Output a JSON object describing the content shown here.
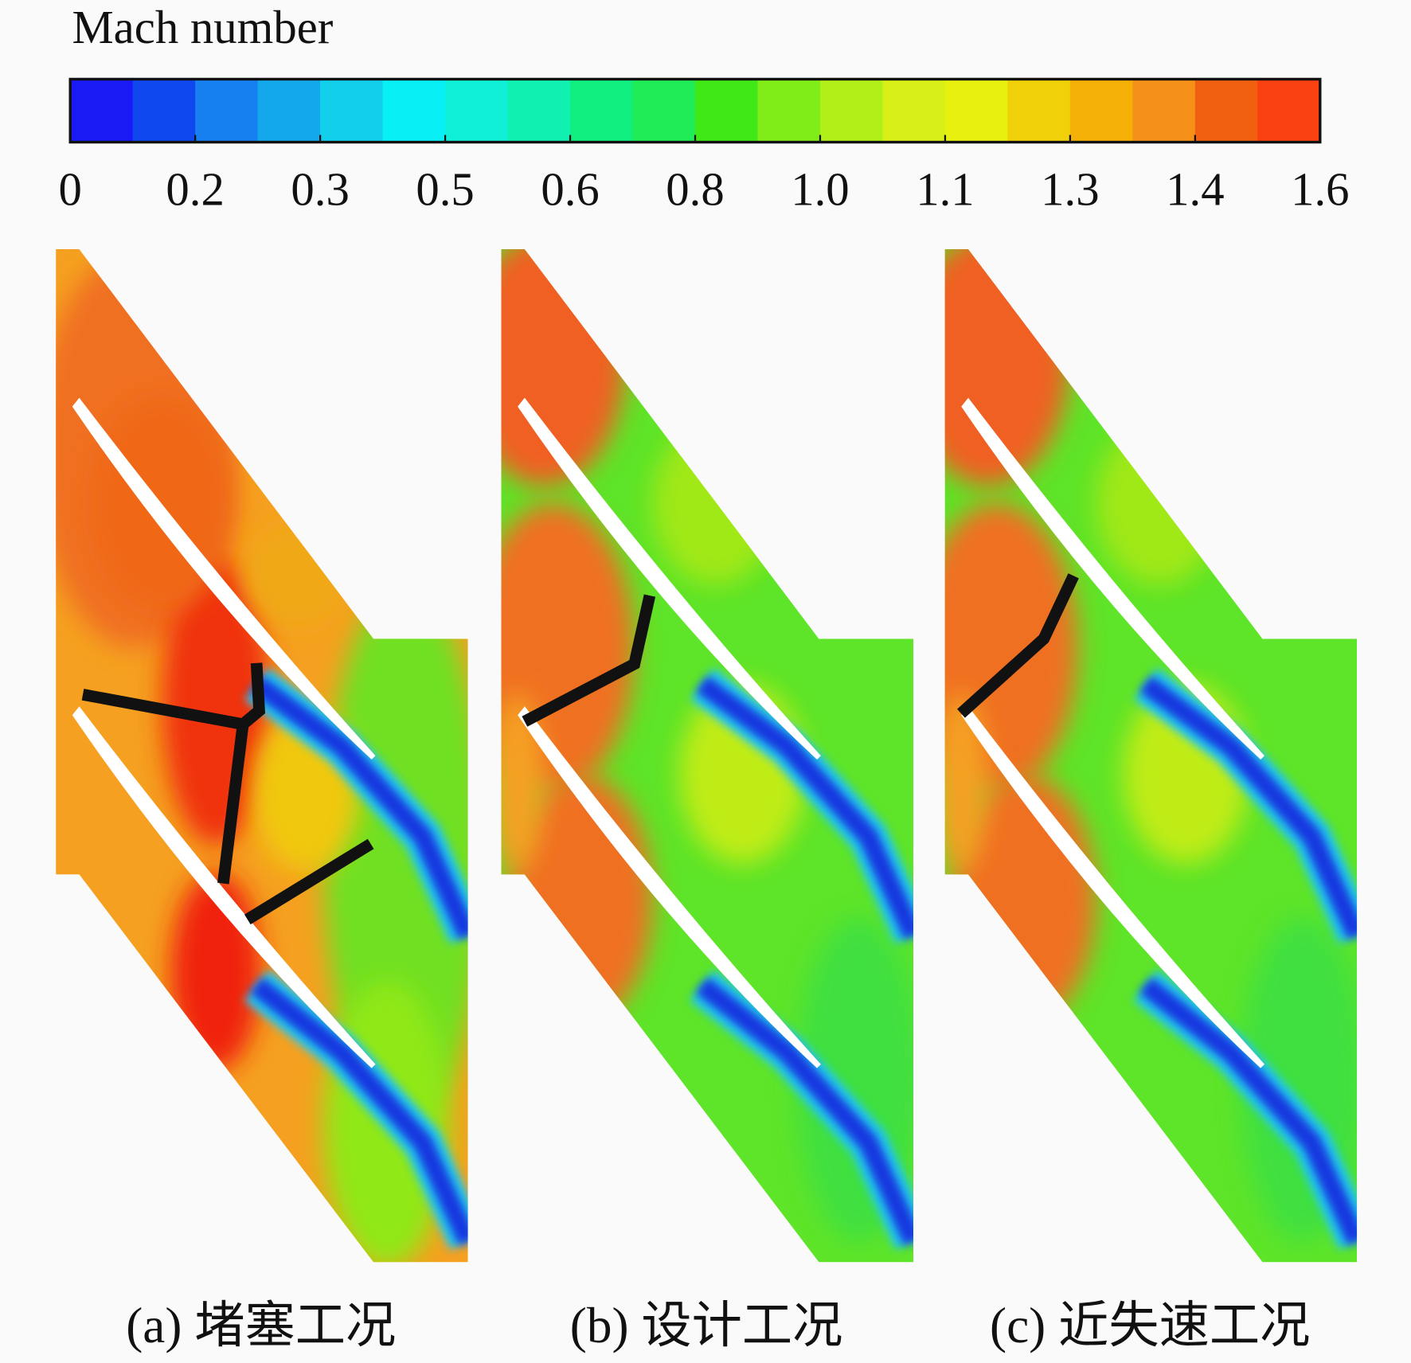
{
  "colorbar": {
    "title": "Mach number",
    "ticks": [
      "0",
      "0.2",
      "0.3",
      "0.5",
      "0.6",
      "0.8",
      "1.0",
      "1.1",
      "1.3",
      "1.4",
      "1.6"
    ]
  },
  "panels": [
    {
      "caption": "(a) 堵塞工况"
    },
    {
      "caption": "(b) 设计工况"
    },
    {
      "caption": "(c) 近失速工况"
    }
  ]
}
